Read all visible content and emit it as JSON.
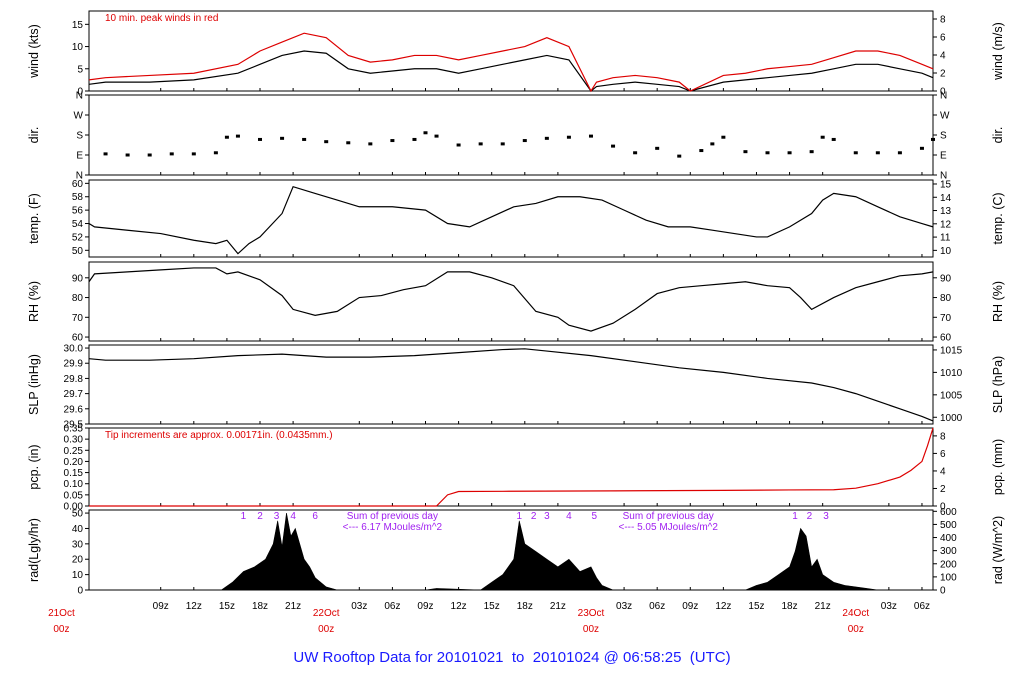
{
  "footer": {
    "prefix": "UW Rooftop Data for",
    "start": "20101021",
    "sep": "to",
    "end": "20101024 @ 06:58:25",
    "tz": "(UTC)"
  },
  "time_axis": {
    "hours_span": 79,
    "tick_labels": [
      {
        "h": 9,
        "label": "09z"
      },
      {
        "h": 12,
        "label": "12z"
      },
      {
        "h": 15,
        "label": "15z"
      },
      {
        "h": 18,
        "label": "18z"
      },
      {
        "h": 21,
        "label": "21z"
      },
      {
        "h": 27,
        "label": "03z"
      },
      {
        "h": 30,
        "label": "06z"
      },
      {
        "h": 33,
        "label": "09z"
      },
      {
        "h": 36,
        "label": "12z"
      },
      {
        "h": 39,
        "label": "15z"
      },
      {
        "h": 42,
        "label": "18z"
      },
      {
        "h": 45,
        "label": "21z"
      },
      {
        "h": 51,
        "label": "03z"
      },
      {
        "h": 54,
        "label": "06z"
      },
      {
        "h": 57,
        "label": "09z"
      },
      {
        "h": 60,
        "label": "12z"
      },
      {
        "h": 63,
        "label": "15z"
      },
      {
        "h": 66,
        "label": "18z"
      },
      {
        "h": 69,
        "label": "21z"
      },
      {
        "h": 75,
        "label": "03z"
      },
      {
        "h": 78,
        "label": "06z"
      }
    ],
    "day_labels": [
      {
        "h": 0,
        "date": "21Oct",
        "hour": "00z"
      },
      {
        "h": 24,
        "date": "22Oct",
        "hour": "00z"
      },
      {
        "h": 48,
        "date": "23Oct",
        "hour": "00z"
      },
      {
        "h": 72,
        "date": "24Oct",
        "hour": "00z"
      }
    ]
  },
  "chart_data": [
    {
      "type": "line",
      "ylabel_left": "wind (kts)",
      "ylabel_right": "wind (m/s)",
      "ylim": [
        0,
        18
      ],
      "yticks_left": [
        0,
        5,
        10,
        15
      ],
      "yticks_right": [
        0,
        2,
        4,
        6,
        8
      ],
      "annotation": "10 min. peak winds in red",
      "series": [
        {
          "name": "wind",
          "color": "#000000",
          "x": [
            0,
            4,
            8,
            12,
            16,
            18,
            20,
            22,
            24,
            26,
            28,
            30,
            32,
            34,
            36,
            38,
            40,
            42,
            44,
            46,
            48,
            48.5,
            50,
            52,
            54,
            56,
            57,
            60,
            62,
            64,
            66,
            68,
            70,
            72,
            74,
            76,
            78,
            79
          ],
          "y": [
            1.5,
            2,
            2,
            2.5,
            4,
            6,
            8,
            9,
            8.5,
            5,
            4,
            4.5,
            5,
            5,
            4,
            5,
            6,
            7,
            8,
            7,
            0,
            1,
            1.5,
            2,
            1.5,
            1,
            0,
            2,
            2.5,
            3,
            3.5,
            4,
            5,
            6,
            6,
            5,
            4,
            3
          ]
        },
        {
          "name": "peak",
          "color": "#dd0000",
          "x": [
            0,
            4,
            8,
            12,
            16,
            18,
            20,
            22,
            24,
            26,
            28,
            30,
            32,
            34,
            36,
            38,
            40,
            42,
            44,
            46,
            48,
            48.5,
            50,
            52,
            54,
            56,
            57,
            60,
            62,
            64,
            66,
            68,
            70,
            72,
            74,
            76,
            78,
            79
          ],
          "y": [
            2.5,
            3,
            3.5,
            4,
            6,
            9,
            11,
            13,
            12,
            8,
            6.5,
            7,
            8,
            8,
            7,
            8,
            9,
            10,
            12,
            10,
            0,
            2,
            3,
            3.5,
            3,
            2,
            0,
            3.5,
            4,
            5,
            5.5,
            6,
            7.5,
            9,
            9,
            8,
            6,
            5
          ]
        }
      ]
    },
    {
      "type": "scatter",
      "ylabel_left": "dir.",
      "ylabel_right": "dir.",
      "ylim": [
        0,
        360
      ],
      "yticks_left": [
        "N",
        "E",
        "S",
        "W",
        "N"
      ],
      "yticks_right": [
        "N",
        "E",
        "S",
        "W",
        "N"
      ],
      "series": [
        {
          "name": "direction",
          "color": "#000000",
          "x": [
            0,
            2,
            4,
            6,
            8,
            10,
            12,
            14,
            15,
            16,
            18,
            20,
            22,
            24,
            26,
            28,
            30,
            32,
            33,
            34,
            36,
            38,
            40,
            42,
            44,
            46,
            48,
            50,
            52,
            54,
            56,
            58,
            59,
            60,
            62,
            64,
            66,
            68,
            69,
            70,
            72,
            74,
            76,
            78,
            79
          ],
          "y": [
            130,
            100,
            95,
            90,
            90,
            95,
            95,
            100,
            170,
            175,
            160,
            165,
            160,
            150,
            145,
            140,
            155,
            160,
            190,
            175,
            135,
            140,
            140,
            155,
            165,
            170,
            175,
            130,
            100,
            120,
            85,
            110,
            140,
            170,
            105,
            100,
            100,
            105,
            170,
            160,
            100,
            100,
            100,
            120,
            160
          ]
        }
      ]
    },
    {
      "type": "line",
      "ylabel_left": "temp. (F)",
      "ylabel_right": "temp. (C)",
      "ylim": [
        49,
        60.5
      ],
      "yticks_left": [
        50,
        52,
        54,
        56,
        58,
        60
      ],
      "yticks_right": [
        10,
        11,
        12,
        13,
        14,
        15
      ],
      "series": [
        {
          "name": "temperature",
          "color": "#000000",
          "x": [
            0,
            3,
            6,
            9,
            12,
            14,
            15,
            16,
            17,
            18,
            20,
            21,
            23,
            25,
            27,
            30,
            33,
            35,
            37,
            39,
            41,
            43,
            45,
            47,
            49,
            51,
            53,
            55,
            57,
            59,
            61,
            63,
            64,
            66,
            68,
            69,
            70,
            72,
            74,
            76,
            78,
            79
          ],
          "y": [
            54,
            53.5,
            53,
            52.5,
            51.5,
            51,
            51.5,
            49.5,
            51,
            52,
            55.5,
            59.5,
            58.5,
            57.5,
            56.5,
            56.5,
            56,
            54,
            53.5,
            55,
            56.5,
            57,
            58,
            58,
            57.5,
            56,
            54.5,
            53.5,
            53.5,
            53,
            52.5,
            52,
            52,
            53.5,
            55.5,
            57.5,
            58.5,
            58,
            56.5,
            55,
            54,
            53.5
          ]
        }
      ]
    },
    {
      "type": "line",
      "ylabel_left": "RH (%)",
      "ylabel_right": "RH (%)",
      "ylim": [
        58,
        98
      ],
      "yticks_left": [
        60,
        70,
        80,
        90
      ],
      "yticks_right": [
        60,
        70,
        80,
        90
      ],
      "series": [
        {
          "name": "relative humidity",
          "color": "#000000",
          "x": [
            0,
            3,
            6,
            9,
            12,
            14,
            15,
            16,
            18,
            20,
            21,
            23,
            25,
            27,
            29,
            31,
            33,
            35,
            37,
            39,
            41,
            43,
            45,
            46,
            48,
            50,
            52,
            54,
            56,
            58,
            60,
            62,
            64,
            66,
            67,
            68,
            70,
            72,
            74,
            76,
            78,
            79
          ],
          "y": [
            88,
            92,
            93,
            94,
            95,
            95,
            92,
            93,
            89,
            81,
            74,
            71,
            73,
            80,
            81,
            84,
            86,
            93,
            93,
            90,
            86,
            73,
            70,
            66,
            63,
            67,
            74,
            82,
            85,
            86,
            87,
            88,
            86,
            85,
            80,
            74,
            80,
            85,
            88,
            91,
            92,
            93
          ]
        }
      ]
    },
    {
      "type": "line",
      "ylabel_left": "SLP (inHg)",
      "ylabel_right": "SLP (hPa)",
      "ylim": [
        29.5,
        30.02
      ],
      "yticks_left": [
        "29.5",
        "29.6",
        "29.7",
        "29.8",
        "29.9",
        "30.0"
      ],
      "yticks_right": [
        1000,
        1005,
        1010,
        1015
      ],
      "series": [
        {
          "name": "sea level pressure",
          "color": "#000000",
          "x": [
            0,
            4,
            8,
            12,
            16,
            20,
            24,
            28,
            32,
            36,
            40,
            42,
            44,
            48,
            52,
            56,
            60,
            64,
            68,
            70,
            72,
            74,
            76,
            78,
            79
          ],
          "y": [
            29.93,
            29.92,
            29.92,
            29.93,
            29.95,
            29.96,
            29.94,
            29.94,
            29.95,
            29.97,
            29.99,
            29.995,
            29.98,
            29.95,
            29.91,
            29.87,
            29.84,
            29.8,
            29.77,
            29.74,
            29.7,
            29.65,
            29.6,
            29.55,
            29.52
          ]
        }
      ]
    },
    {
      "type": "line",
      "ylabel_left": "pcp. (in)",
      "ylabel_right": "pcp. (mm)",
      "ylim": [
        0,
        0.35
      ],
      "yticks_left": [
        "0.00",
        "0.05",
        "0.10",
        "0.15",
        "0.20",
        "0.25",
        "0.30",
        "0.35"
      ],
      "yticks_right": [
        0,
        2,
        4,
        6,
        8
      ],
      "annotation": "Tip increments are approx. 0.00171in. (0.0435mm.)",
      "series": [
        {
          "name": "precipitation",
          "color": "#dd0000",
          "x": [
            0,
            10,
            20,
            30,
            34,
            35,
            36,
            40,
            50,
            60,
            66,
            70,
            72,
            74,
            76,
            77,
            78,
            78.5,
            79
          ],
          "y": [
            0,
            0,
            0,
            0,
            0,
            0.05,
            0.065,
            0.066,
            0.068,
            0.07,
            0.072,
            0.073,
            0.08,
            0.1,
            0.13,
            0.16,
            0.2,
            0.27,
            0.35
          ]
        }
      ]
    },
    {
      "type": "area",
      "ylabel_left": "rad(Lgly/hr)",
      "ylabel_right": "rad (W/m^2)",
      "ylim": [
        0,
        52
      ],
      "yticks_left": [
        0,
        10,
        20,
        30,
        40,
        50
      ],
      "yticks_right": [
        0,
        100,
        200,
        300,
        400,
        500,
        600
      ],
      "annotations": [
        {
          "h": 16.5,
          "text": "1"
        },
        {
          "h": 18,
          "text": "2"
        },
        {
          "h": 19.5,
          "text": "3"
        },
        {
          "h": 21,
          "text": "4"
        },
        {
          "h": 23,
          "text": "6"
        },
        {
          "h": 41.5,
          "text": "1"
        },
        {
          "h": 42.8,
          "text": "2"
        },
        {
          "h": 44,
          "text": "3"
        },
        {
          "h": 46,
          "text": "4"
        },
        {
          "h": 48.3,
          "text": "5"
        },
        {
          "h": 66.5,
          "text": "1"
        },
        {
          "h": 67.8,
          "text": "2"
        },
        {
          "h": 69.3,
          "text": "3"
        }
      ],
      "notes": [
        {
          "h": 30,
          "line1": "Sum of previous day",
          "line2": "<--- 6.17 MJoules/m^2"
        },
        {
          "h": 55,
          "line1": "Sum of previous day",
          "line2": "<--- 5.05 MJoules/m^2"
        }
      ],
      "series": [
        {
          "name": "radiation",
          "color": "#000000",
          "x": [
            14.5,
            15.5,
            16.5,
            17.5,
            18.5,
            19.2,
            19.6,
            20,
            20.4,
            20.8,
            21.2,
            22,
            22.5,
            23,
            24,
            25,
            33,
            34,
            38,
            39,
            40,
            41,
            41.5,
            42,
            43,
            44,
            45,
            46,
            47,
            48,
            48.5,
            49,
            50,
            62,
            63,
            64,
            65,
            66,
            66.5,
            67,
            67.5,
            68,
            68.5,
            69,
            70,
            71,
            72,
            73,
            74
          ],
          "y": [
            0,
            5,
            12,
            15,
            20,
            30,
            45,
            28,
            50,
            35,
            40,
            20,
            15,
            8,
            2,
            0,
            0,
            1,
            0,
            5,
            10,
            20,
            45,
            30,
            25,
            20,
            15,
            20,
            12,
            15,
            8,
            3,
            0,
            0,
            3,
            5,
            10,
            15,
            25,
            40,
            35,
            15,
            20,
            10,
            5,
            3,
            2,
            1,
            0
          ]
        }
      ]
    }
  ]
}
